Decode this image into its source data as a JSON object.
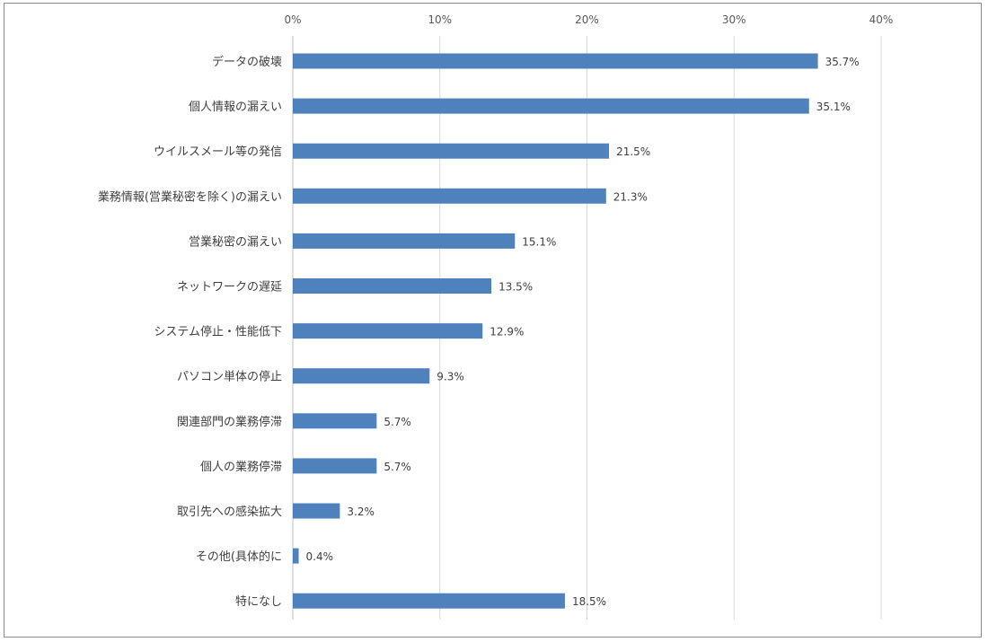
{
  "chart_data": {
    "type": "bar",
    "orientation": "horizontal",
    "categories": [
      "データの破壊",
      "個人情報の漏えい",
      "ウイルスメール等の発信",
      "業務情報(営業秘密を除く)の漏えい",
      "営業秘密の漏えい",
      "ネットワークの遅延",
      "システム停止・性能低下",
      "パソコン単体の停止",
      "関連部門の業務停滞",
      "個人の業務停滞",
      "取引先への感染拡大",
      "その他(具体的に",
      "特になし"
    ],
    "values": [
      35.7,
      35.1,
      21.5,
      21.3,
      15.1,
      13.5,
      12.9,
      9.3,
      5.7,
      5.7,
      3.2,
      0.4,
      18.5
    ],
    "data_labels": [
      "35.7%",
      "35.1%",
      "21.5%",
      "21.3%",
      "15.1%",
      "13.5%",
      "12.9%",
      "9.3%",
      "5.7%",
      "5.7%",
      "3.2%",
      "0.4%",
      "18.5%"
    ],
    "xticks": [
      0,
      10,
      20,
      30,
      40
    ],
    "xtick_labels": [
      "0%",
      "10%",
      "20%",
      "30%",
      "40%"
    ],
    "xlim": [
      0,
      40
    ],
    "x_axis_position": "top",
    "grid": true,
    "colors": {
      "bar": "#4f81bd",
      "grid": "#d9d9d9"
    }
  }
}
